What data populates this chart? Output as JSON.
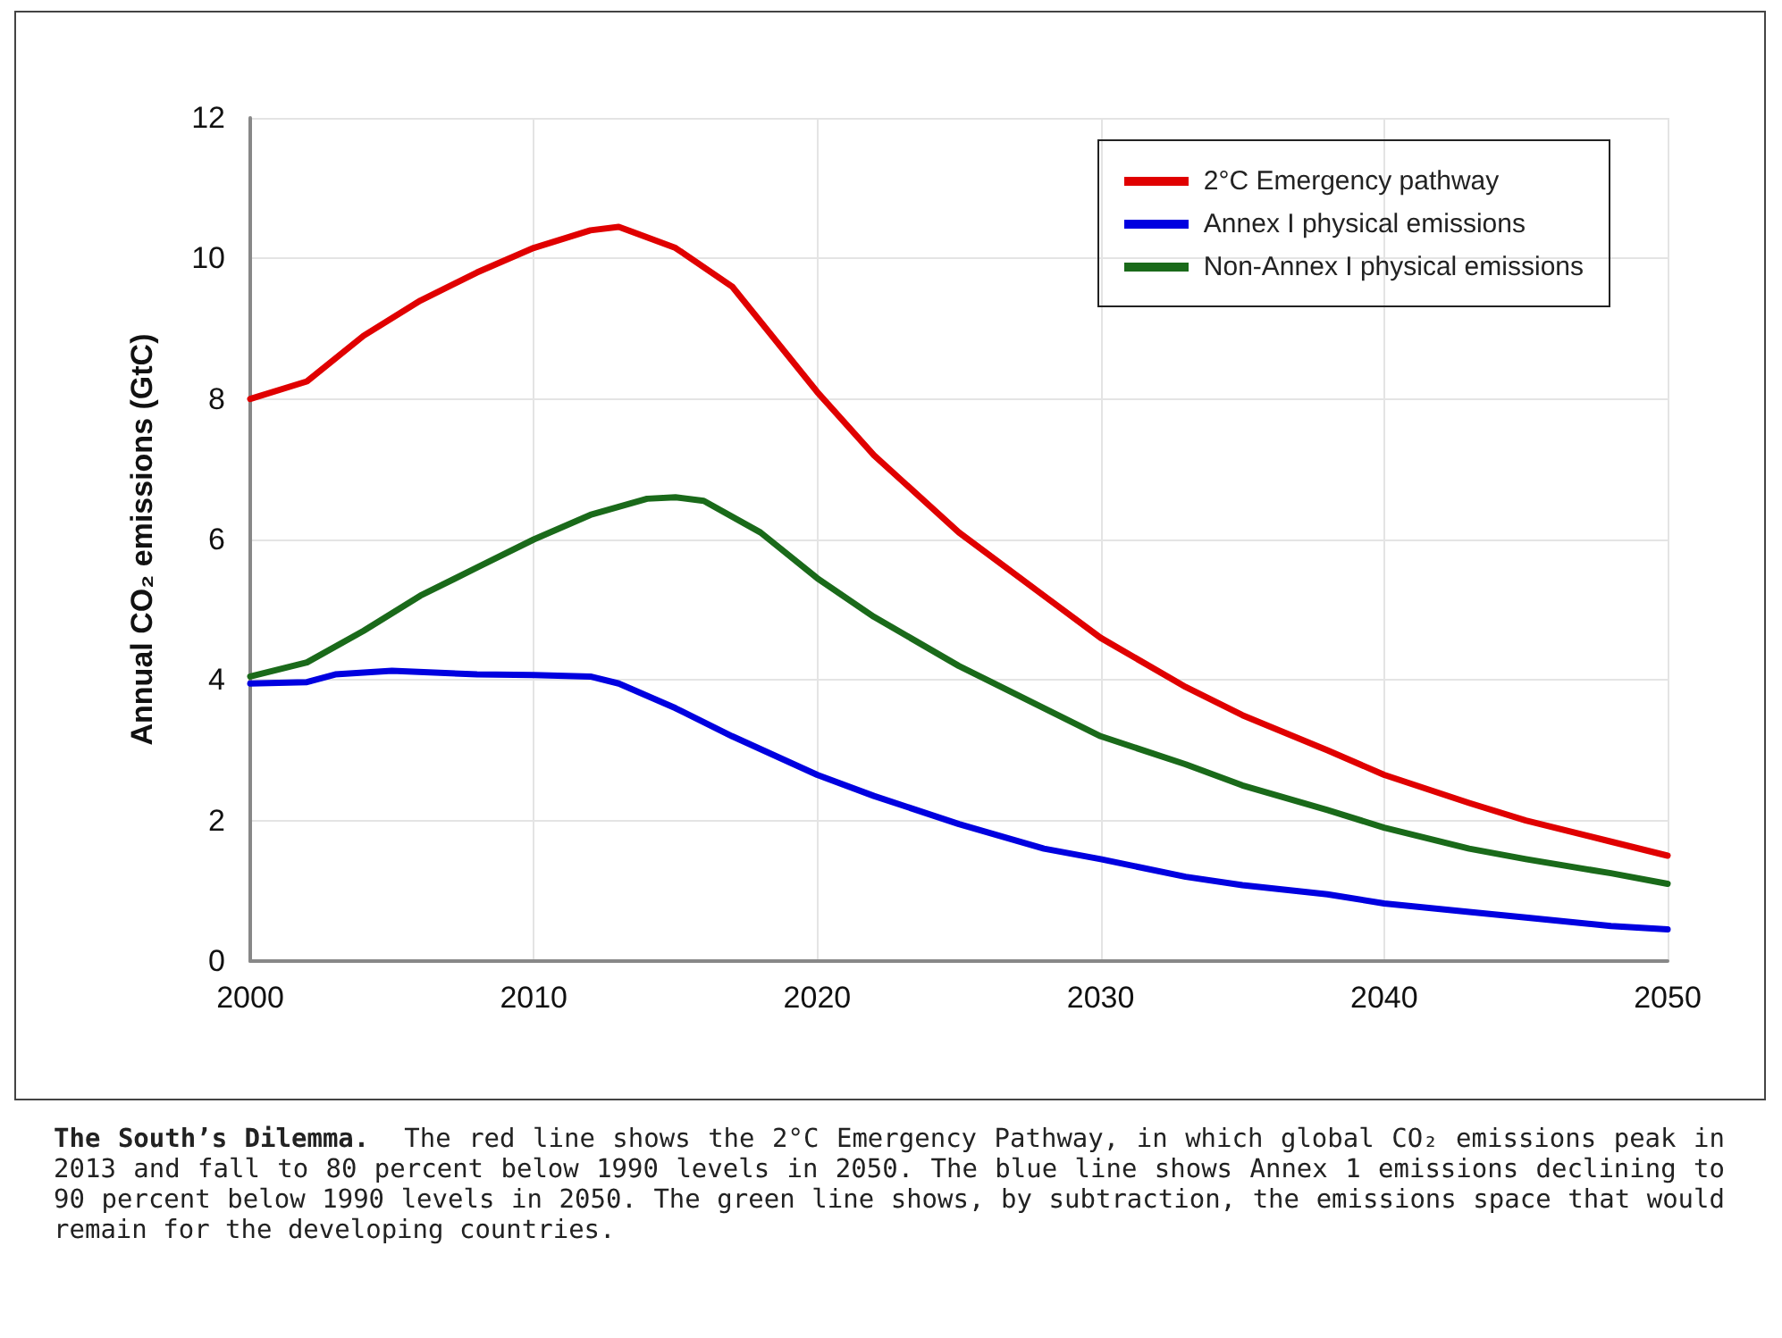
{
  "chart_data": {
    "type": "line",
    "title": "The South’s Dilemma.",
    "annotations": [
      "The red line shows the 2°C Emergency Pathway, in which global CO₂ emissions peak in 2013 and fall to 80 percent below 1990 levels in 2050. The blue line shows Annex 1 emissions declining to 90 percent below 1990 levels in 2050.  The green line shows, by subtraction, the emissions space that would remain for the developing countries."
    ],
    "ylabel": "Annual CO₂ emissions (GtC)",
    "xlim": [
      2000,
      2050
    ],
    "xticks": [
      2000,
      2010,
      2020,
      2030,
      2040,
      2050
    ],
    "ylim": [
      0,
      12
    ],
    "yticks": [
      0,
      2,
      4,
      6,
      8,
      10,
      12
    ],
    "grid": true,
    "legend": "top right",
    "marker": "none",
    "line_style": "solid",
    "series": [
      {
        "name": "2°C Emergency pathway",
        "color": "#e00000",
        "x": [
          2000,
          2002,
          2004,
          2006,
          2008,
          2010,
          2012,
          2013,
          2015,
          2017,
          2020,
          2022,
          2025,
          2028,
          2030,
          2033,
          2035,
          2038,
          2040,
          2043,
          2045,
          2048,
          2050
        ],
        "values": [
          8.0,
          8.25,
          8.9,
          9.4,
          9.8,
          10.15,
          10.4,
          10.45,
          10.15,
          9.6,
          8.1,
          7.2,
          6.1,
          5.2,
          4.6,
          3.9,
          3.5,
          3.0,
          2.65,
          2.25,
          2.0,
          1.7,
          1.5
        ]
      },
      {
        "name": "Annex I physical emissions",
        "color": "#0000e0",
        "x": [
          2000,
          2002,
          2003,
          2005,
          2008,
          2010,
          2012,
          2013,
          2015,
          2017,
          2020,
          2022,
          2025,
          2028,
          2030,
          2033,
          2035,
          2038,
          2040,
          2043,
          2045,
          2048,
          2050
        ],
        "values": [
          3.95,
          3.97,
          4.08,
          4.13,
          4.08,
          4.07,
          4.05,
          3.95,
          3.6,
          3.2,
          2.65,
          2.35,
          1.95,
          1.6,
          1.45,
          1.2,
          1.08,
          0.95,
          0.82,
          0.7,
          0.62,
          0.5,
          0.45
        ]
      },
      {
        "name": "Non-Annex I physical emissions",
        "color": "#1a6a1a",
        "x": [
          2000,
          2002,
          2004,
          2006,
          2008,
          2010,
          2012,
          2014,
          2015,
          2016,
          2018,
          2020,
          2022,
          2025,
          2028,
          2030,
          2033,
          2035,
          2038,
          2040,
          2043,
          2045,
          2048,
          2050
        ],
        "values": [
          4.05,
          4.25,
          4.7,
          5.2,
          5.6,
          6.0,
          6.35,
          6.58,
          6.6,
          6.55,
          6.1,
          5.45,
          4.9,
          4.2,
          3.6,
          3.2,
          2.8,
          2.5,
          2.15,
          1.9,
          1.6,
          1.45,
          1.25,
          1.1
        ]
      }
    ]
  }
}
